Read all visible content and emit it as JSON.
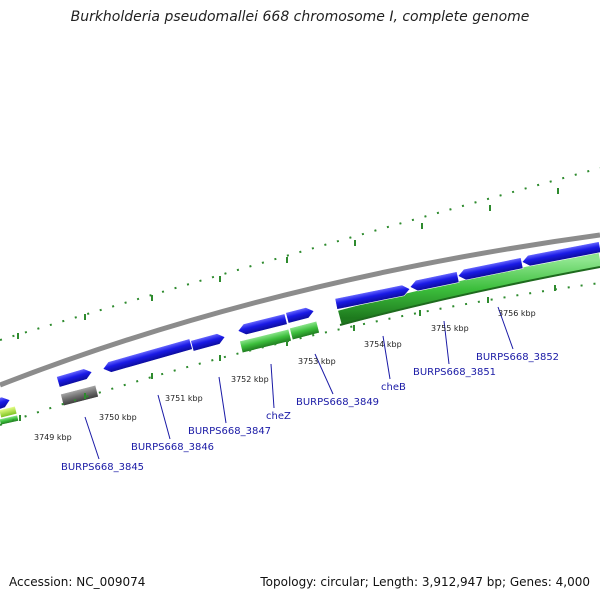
{
  "title": "Burkholderia pseudomallei 668 chromosome I, complete genome",
  "footer": {
    "accession": "Accession: NC_009074",
    "summary": "Topology: circular; Length: 3,912,947 bp; Genes: 4,000"
  },
  "kbp_labels": [
    "3749 kbp",
    "3750 kbp",
    "3751 kbp",
    "3752 kbp",
    "3753 kbp",
    "3754 kbp",
    "3755 kbp",
    "3756 kbp"
  ],
  "gene_labels": [
    "BURPS668_3845",
    "BURPS668_3846",
    "BURPS668_3847",
    "cheZ",
    "BURPS668_3849",
    "cheB",
    "BURPS668_3851",
    "BURPS668_3852"
  ],
  "colors": {
    "forward_gene": "#1a1ae6",
    "reverse_gene": "#3cbe3c",
    "pseudogene": "#707070",
    "backbone": "#8c8c8c",
    "ticks": "#2e8b2e",
    "label": "#1a1aa6"
  }
}
